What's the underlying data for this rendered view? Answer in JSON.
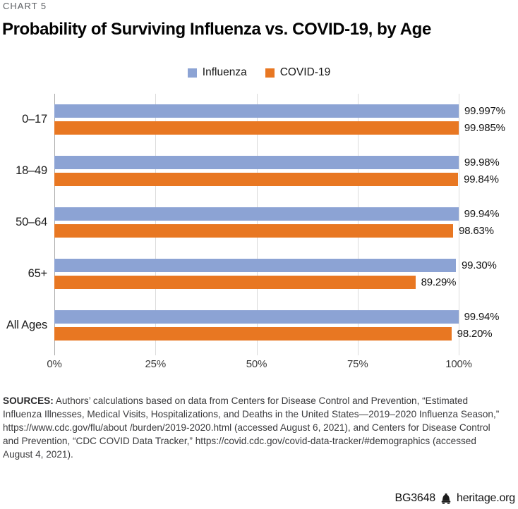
{
  "meta": {
    "eyebrow": "CHART 5",
    "title": "Probability of Surviving Influenza vs. COVID-19, by Age"
  },
  "colors": {
    "influenza": "#8CA3D4",
    "covid": "#E87722",
    "axis": "#A9A9A9",
    "grid": "#DBDBDB"
  },
  "legend": {
    "items": [
      {
        "label": "Influenza",
        "color": "#8CA3D4"
      },
      {
        "label": "COVID-19",
        "color": "#E87722"
      }
    ]
  },
  "chart_data": {
    "type": "bar",
    "orientation": "horizontal",
    "title": "Probability of Surviving Influenza vs. COVID-19, by Age",
    "categories": [
      "0–17",
      "18–49",
      "50–64",
      "65+",
      "All Ages"
    ],
    "series": [
      {
        "name": "Influenza",
        "color": "#8CA3D4",
        "values": [
          99.997,
          99.98,
          99.94,
          99.3,
          99.94
        ],
        "labels": [
          "99.997%",
          "99.98%",
          "99.94%",
          "99.30%",
          "99.94%"
        ]
      },
      {
        "name": "COVID-19",
        "color": "#E87722",
        "values": [
          99.985,
          99.84,
          98.63,
          89.29,
          98.2
        ],
        "labels": [
          "99.985%",
          "99.84%",
          "98.63%",
          "89.29%",
          "98.20%"
        ]
      }
    ],
    "x_ticks": [
      "0%",
      "25%",
      "50%",
      "75%",
      "100%"
    ],
    "x_tick_values": [
      0,
      25,
      50,
      75,
      100
    ],
    "xlim": [
      0,
      100
    ],
    "xlabel": "",
    "ylabel": "",
    "grid": true,
    "legend_position": "top-center"
  },
  "sources": {
    "label": "SOURCES:",
    "lines": [
      "Authors’ calculations based on data from Centers for Disease Control and Prevention, “Estimated",
      "Influenza Illnesses, Medical Visits, Hospitalizations, and Deaths in the United States—2019–2020 Influenza Season,”",
      "https://www.cdc.gov/flu/about /burden/2019-2020.html (accessed August 6, 2021), and Centers for Disease Control",
      "and Prevention, “CDC COVID Data Tracker,” https://covid.cdc.gov/covid-data-tracker/#demographics (accessed",
      "August 4, 2021)."
    ]
  },
  "footer": {
    "doc_id": "BG3648",
    "site": "heritage.org",
    "icon": "liberty-bell-icon"
  }
}
